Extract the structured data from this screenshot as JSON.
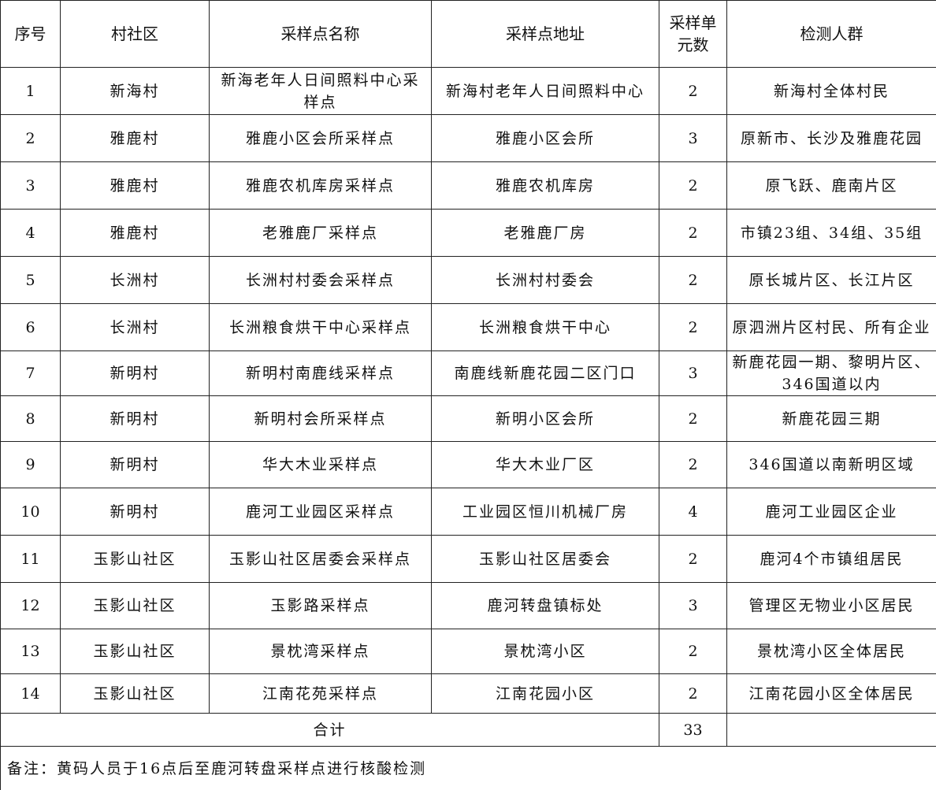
{
  "headers": [
    "序号",
    "村社区",
    "采样点名称",
    "采样点地址",
    "采样单元数",
    "检测人群"
  ],
  "rows": [
    [
      "1",
      "新海村",
      "新海老年人日间照料中心采样点",
      "新海村老年人日间照料中心",
      "2",
      "新海村全体村民"
    ],
    [
      "2",
      "雅鹿村",
      "雅鹿小区会所采样点",
      "雅鹿小区会所",
      "3",
      "原新市、长沙及雅鹿花园"
    ],
    [
      "3",
      "雅鹿村",
      "雅鹿农机库房采样点",
      "雅鹿农机库房",
      "2",
      "原飞跃、鹿南片区"
    ],
    [
      "4",
      "雅鹿村",
      "老雅鹿厂采样点",
      "老雅鹿厂房",
      "2",
      "市镇23组、34组、35组"
    ],
    [
      "5",
      "长洲村",
      "长洲村村委会采样点",
      "长洲村村委会",
      "2",
      "原长城片区、长江片区"
    ],
    [
      "6",
      "长洲村",
      "长洲粮食烘干中心采样点",
      "长洲粮食烘干中心",
      "2",
      "原泗洲片区村民、所有企业"
    ],
    [
      "7",
      "新明村",
      "新明村南鹿线采样点",
      "南鹿线新鹿花园二区门口",
      "3",
      "新鹿花园一期、黎明片区、346国道以内"
    ],
    [
      "8",
      "新明村",
      "新明村会所采样点",
      "新明小区会所",
      "2",
      "新鹿花园三期"
    ],
    [
      "9",
      "新明村",
      "华大木业采样点",
      "华大木业厂区",
      "2",
      "346国道以南新明区域"
    ],
    [
      "10",
      "新明村",
      "鹿河工业园区采样点",
      "工业园区恒川机械厂房",
      "4",
      "鹿河工业园区企业"
    ],
    [
      "11",
      "玉影山社区",
      "玉影山社区居委会采样点",
      "玉影山社区居委会",
      "2",
      "鹿河4个市镇组居民"
    ],
    [
      "12",
      "玉影山社区",
      "玉影路采样点",
      "鹿河转盘镇标处",
      "3",
      "管理区无物业小区居民"
    ],
    [
      "13",
      "玉影山社区",
      "景枕湾采样点",
      "景枕湾小区",
      "2",
      "景枕湾小区全体居民"
    ],
    [
      "14",
      "玉影山社区",
      "江南花苑采样点",
      "江南花园小区",
      "2",
      "江南花园小区全体居民"
    ]
  ],
  "total": {
    "label": "合计",
    "value": "33"
  },
  "note": "备注：黄码人员于16点后至鹿河转盘采样点进行核酸检测"
}
